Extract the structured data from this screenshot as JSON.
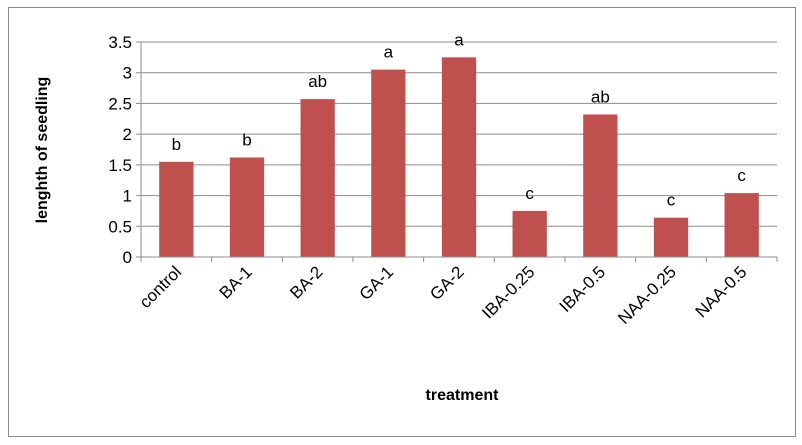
{
  "chart_data": {
    "type": "bar",
    "categories": [
      "control",
      "BA-1",
      "BA-2",
      "GA-1",
      "GA-2",
      "IBA-0.25",
      "IBA-0.5",
      "NAA-0.25",
      "NAA-0.5"
    ],
    "values": [
      1.55,
      1.62,
      2.57,
      3.05,
      3.25,
      0.75,
      2.32,
      0.64,
      1.04
    ],
    "data_labels": [
      "b",
      "b",
      "ab",
      "a",
      "a",
      "c",
      "ab",
      "c",
      "c"
    ],
    "xlabel": "treatment",
    "ylabel": "lenghth of seedling",
    "ylim": [
      0,
      3.5
    ],
    "yticks": [
      "0",
      "0.5",
      "1",
      "1.5",
      "2",
      "2.5",
      "3",
      "3.5"
    ],
    "grid": "horizontal",
    "legend": "none",
    "bar_color": "#c0504d"
  }
}
